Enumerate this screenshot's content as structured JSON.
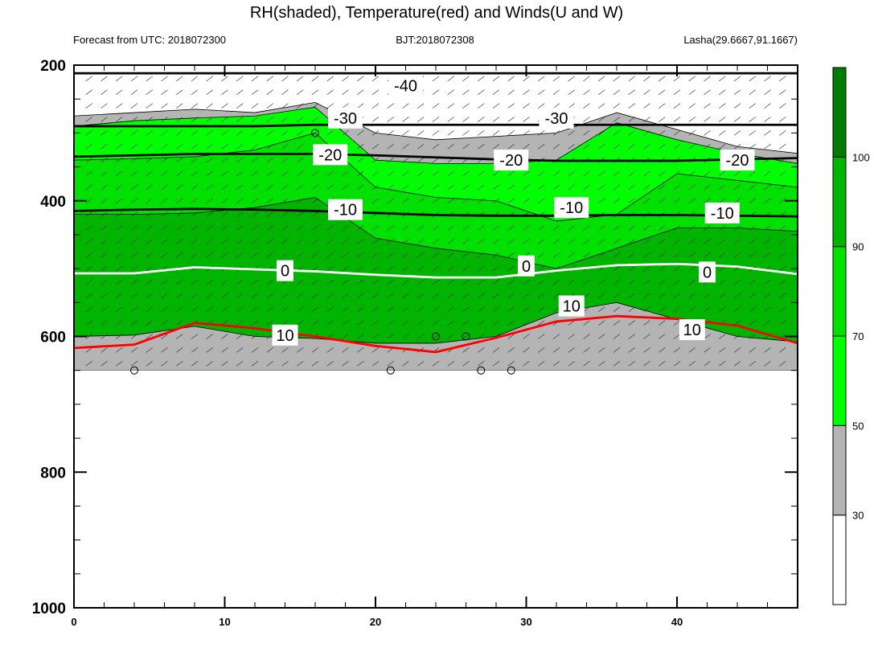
{
  "chart_data": {
    "type": "cross-section (filled contour + line contour + wind barbs)",
    "title": "RH(shaded), Temperature(red) and Winds(U and W)",
    "left_string": "Forecast from UTC: 2018072300",
    "center_string": "BJT:2018072308",
    "right_string": "Lasha(29.6667,91.1667)",
    "x_axis": {
      "range": [
        0,
        48
      ],
      "tick_labels": [
        "0",
        "10",
        "20",
        "30",
        "40"
      ]
    },
    "y_axis": {
      "range": [
        200,
        1000
      ],
      "inverted": true,
      "tick_labels": [
        "200",
        "400",
        "600",
        "800",
        "1000"
      ]
    },
    "colorbar": {
      "levels": [
        "30",
        "50",
        "70",
        "90",
        "100"
      ],
      "colors": [
        "#ffffff",
        "#b4b4b4",
        "#00ff00",
        "#00e100",
        "#00b400",
        "#007d00"
      ]
    },
    "surface_cutoff_hPa": 650,
    "temperature_contours": [
      {
        "level": "-40",
        "y": [
          212,
          212,
          212,
          212,
          212,
          212,
          212,
          212,
          212,
          212,
          212,
          212,
          212
        ],
        "labels": [
          {
            "x": 22,
            "y": 230
          }
        ]
      },
      {
        "level": "-30",
        "y": [
          290,
          290,
          290,
          290,
          288,
          288,
          288,
          288,
          288,
          288,
          288,
          288,
          288
        ],
        "labels": [
          {
            "x": 18,
            "y": 278
          },
          {
            "x": 32,
            "y": 278
          }
        ]
      },
      {
        "level": "-20",
        "y": [
          335,
          333,
          331,
          331,
          331,
          333,
          336,
          339,
          341,
          341,
          341,
          339,
          337
        ],
        "labels": [
          {
            "x": 17,
            "y": 332
          },
          {
            "x": 29,
            "y": 340
          },
          {
            "x": 44,
            "y": 340
          }
        ]
      },
      {
        "level": "-10",
        "y": [
          415,
          413,
          412,
          413,
          415,
          418,
          421,
          422,
          422,
          421,
          421,
          422,
          423
        ],
        "labels": [
          {
            "x": 18,
            "y": 413
          },
          {
            "x": 33,
            "y": 410
          },
          {
            "x": 43,
            "y": 418
          }
        ]
      },
      {
        "level": "0",
        "y": [
          507,
          507,
          498,
          501,
          504,
          509,
          513,
          513,
          503,
          495,
          493,
          497,
          508
        ],
        "labels": [
          {
            "x": 14,
            "y": 503
          },
          {
            "x": 30,
            "y": 496
          },
          {
            "x": 42,
            "y": 505
          }
        ]
      },
      {
        "level": "10",
        "y": [
          617,
          612,
          580,
          588,
          600,
          614,
          623,
          602,
          578,
          570,
          574,
          584,
          610
        ],
        "labels": [
          {
            "x": 14,
            "y": 598
          },
          {
            "x": 33,
            "y": 555
          },
          {
            "x": 41,
            "y": 590
          }
        ]
      }
    ],
    "calm_markers": [
      {
        "x": 4,
        "y": 650
      },
      {
        "x": 16,
        "y": 300
      },
      {
        "x": 21,
        "y": 650
      },
      {
        "x": 24,
        "y": 600
      },
      {
        "x": 26,
        "y": 600
      },
      {
        "x": 27,
        "y": 650
      },
      {
        "x": 29,
        "y": 650
      }
    ]
  }
}
